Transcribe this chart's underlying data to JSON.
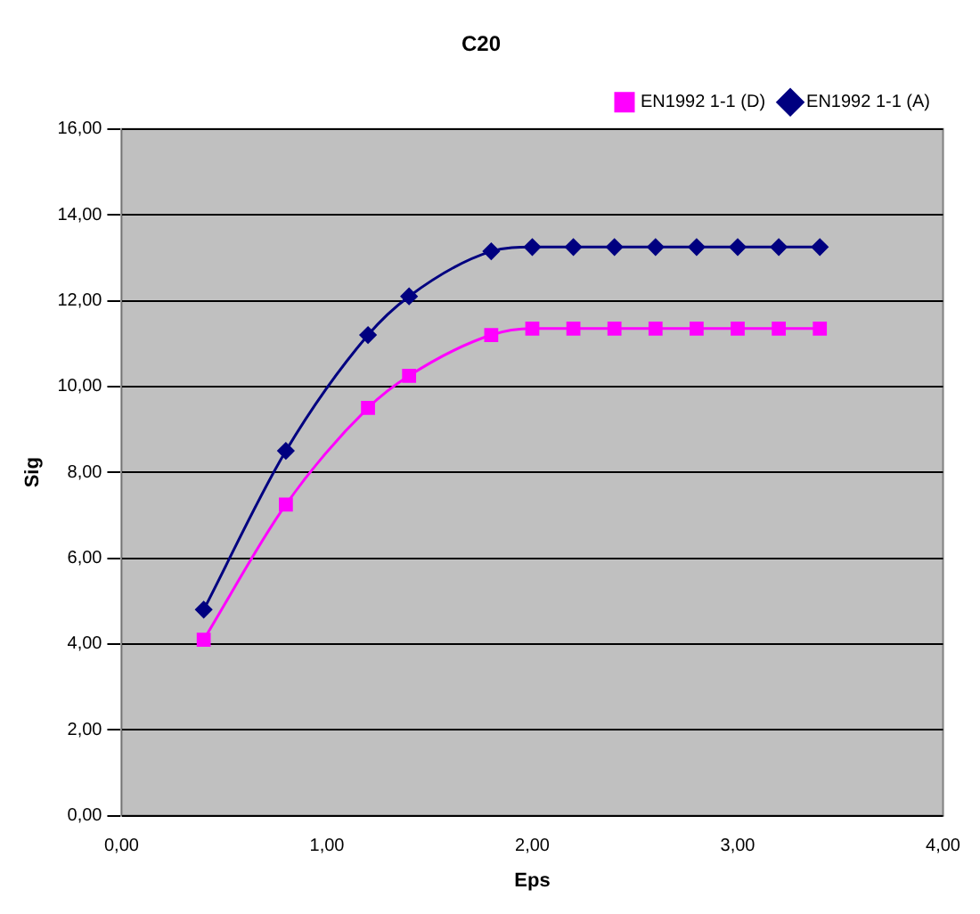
{
  "chart_data": {
    "type": "line",
    "title": "C20",
    "xlabel": "Eps",
    "ylabel": "Sig",
    "xlim": [
      0,
      4
    ],
    "xticks": [
      {
        "value": 0,
        "label": "0,00"
      },
      {
        "value": 1,
        "label": "1,00"
      },
      {
        "value": 2,
        "label": "2,00"
      },
      {
        "value": 3,
        "label": "3,00"
      },
      {
        "value": 4,
        "label": "4,00"
      }
    ],
    "ylim": [
      0,
      16
    ],
    "yticks": [
      {
        "value": 0,
        "label": "0,00"
      },
      {
        "value": 2,
        "label": "2,00"
      },
      {
        "value": 4,
        "label": "4,00"
      },
      {
        "value": 6,
        "label": "6,00"
      },
      {
        "value": 8,
        "label": "8,00"
      },
      {
        "value": 10,
        "label": "10,00"
      },
      {
        "value": 12,
        "label": "12,00"
      },
      {
        "value": 14,
        "label": "14,00"
      },
      {
        "value": 16,
        "label": "16,00"
      }
    ],
    "x": [
      0.4,
      0.8,
      1.2,
      1.4,
      1.8,
      2.0,
      2.2,
      2.4,
      2.6,
      2.8,
      3.0,
      3.2,
      3.4
    ],
    "series": [
      {
        "name": "EN1992 1-1 (D)",
        "color": "#ff00ff",
        "marker": "square",
        "values": [
          4.1,
          7.25,
          9.5,
          10.25,
          11.2,
          11.35,
          11.35,
          11.35,
          11.35,
          11.35,
          11.35,
          11.35,
          11.35
        ]
      },
      {
        "name": "EN1992 1-1 (A)",
        "color": "#000080",
        "marker": "diamond",
        "values": [
          4.8,
          8.5,
          11.2,
          12.1,
          13.15,
          13.25,
          13.25,
          13.25,
          13.25,
          13.25,
          13.25,
          13.25,
          13.25
        ]
      }
    ],
    "grid": "y",
    "legend": "top right"
  }
}
